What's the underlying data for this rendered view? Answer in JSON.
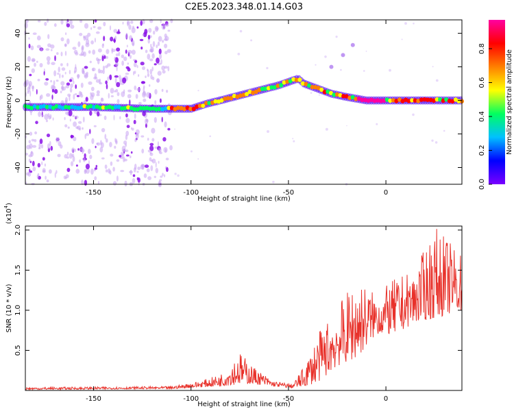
{
  "title": "C2E5.2023.348.01.14.G03",
  "chart_data": [
    {
      "type": "heatmap",
      "xlabel": "Height of straight line (km)",
      "ylabel": "Frequency (Hz)",
      "xlim": [
        -185,
        39
      ],
      "ylim": [
        -50,
        48
      ],
      "xticks": [
        -150,
        -100,
        -50,
        0
      ],
      "yticks": [
        -40,
        -20,
        0,
        20,
        40
      ],
      "colorbar": {
        "label": "Normalized spectral amplitude",
        "range": [
          0.0,
          0.97
        ],
        "ticks": [
          0.0,
          0.2,
          0.4,
          0.6,
          0.8
        ],
        "colormap": [
          "#7a00ff",
          "#0000ff",
          "#00c0ff",
          "#00ff60",
          "#ffff00",
          "#ff8000",
          "#ff0000",
          "#ff00a0"
        ]
      },
      "ridge": [
        {
          "x": -185,
          "y": -4
        },
        {
          "x": -150,
          "y": -4
        },
        {
          "x": -120,
          "y": -5
        },
        {
          "x": -100,
          "y": -5
        },
        {
          "x": -92,
          "y": -2
        },
        {
          "x": -85,
          "y": 0
        },
        {
          "x": -75,
          "y": 3
        },
        {
          "x": -65,
          "y": 6
        },
        {
          "x": -55,
          "y": 9
        },
        {
          "x": -45,
          "y": 13
        },
        {
          "x": -42,
          "y": 10
        },
        {
          "x": -35,
          "y": 7
        },
        {
          "x": -28,
          "y": 4
        },
        {
          "x": -20,
          "y": 2
        },
        {
          "x": -10,
          "y": 0
        },
        {
          "x": 0,
          "y": 0
        },
        {
          "x": 10,
          "y": 0
        },
        {
          "x": 20,
          "y": 0
        },
        {
          "x": 39,
          "y": 0
        }
      ],
      "ridge_peak": {
        "x_range": [
          -15,
          0
        ],
        "amplitude": 0.95
      },
      "branch": [
        {
          "x": -28,
          "y": 20
        },
        {
          "x": -22,
          "y": 27
        },
        {
          "x": -17,
          "y": 33
        }
      ],
      "noise_region_x": [
        -185,
        -110
      ]
    },
    {
      "type": "line",
      "xlabel": "Height of straight line (km)",
      "ylabel": "SNR (10 * v/v)",
      "y_scale_label": "(x10",
      "y_scale_exponent": "4",
      "y_scale_close": ")",
      "xlim": [
        -185,
        39
      ],
      "ylim": [
        0,
        2.05
      ],
      "xticks": [
        -150,
        -100,
        -50,
        0
      ],
      "yticks": [
        0.5,
        1.0,
        1.5,
        2.0
      ],
      "ytick_labels": [
        "0.5",
        "1.0",
        "1.5",
        "2.0"
      ],
      "color": "#e8312a",
      "envelope": [
        {
          "x": -185,
          "low": 0.01,
          "high": 0.04
        },
        {
          "x": -110,
          "low": 0.02,
          "high": 0.05
        },
        {
          "x": -95,
          "low": 0.04,
          "high": 0.12
        },
        {
          "x": -85,
          "low": 0.05,
          "high": 0.2
        },
        {
          "x": -75,
          "low": 0.08,
          "high": 0.48
        },
        {
          "x": -68,
          "low": 0.08,
          "high": 0.3
        },
        {
          "x": -58,
          "low": 0.05,
          "high": 0.12
        },
        {
          "x": -48,
          "low": 0.03,
          "high": 0.08
        },
        {
          "x": -42,
          "low": 0.05,
          "high": 0.3
        },
        {
          "x": -35,
          "low": 0.1,
          "high": 0.7
        },
        {
          "x": -25,
          "low": 0.3,
          "high": 1.05
        },
        {
          "x": -15,
          "low": 0.4,
          "high": 1.4
        },
        {
          "x": -5,
          "low": 0.7,
          "high": 1.2
        },
        {
          "x": 5,
          "low": 0.7,
          "high": 1.4
        },
        {
          "x": 15,
          "low": 0.85,
          "high": 1.5
        },
        {
          "x": 25,
          "low": 0.9,
          "high": 2.05
        },
        {
          "x": 39,
          "low": 1.0,
          "high": 1.7
        }
      ]
    }
  ]
}
